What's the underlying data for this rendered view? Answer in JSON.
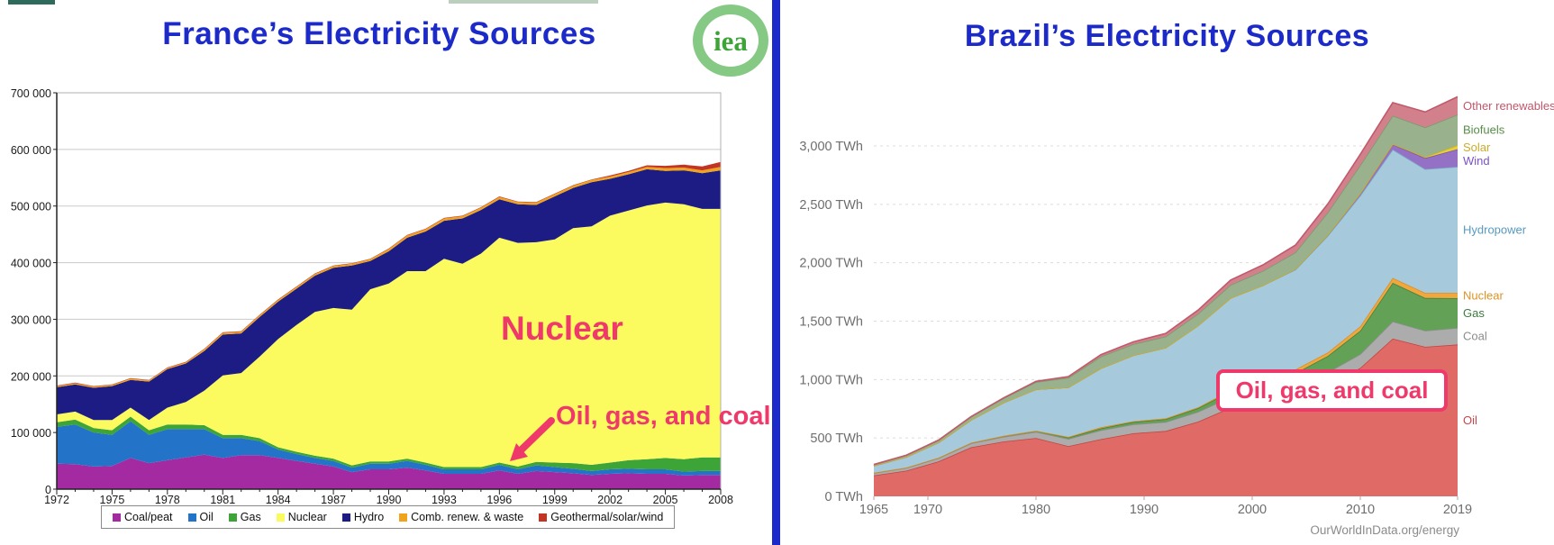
{
  "page": {
    "background": "#ffffff",
    "divider_color": "#1B2AC8"
  },
  "left_panel": {
    "title": "France’s Electricity Sources",
    "title_color": "#1B2AC8",
    "logo": {
      "text": "iea",
      "ring_color": "#85C985",
      "text_color": "#3DA437"
    },
    "annotations": {
      "nuclear": "Nuclear",
      "fossil": "Oil, gas, and coal",
      "color": "#F0396B"
    },
    "chart_data": {
      "type": "area",
      "stacked": true,
      "unit": "GWh",
      "title": "France's Electricity Sources",
      "xlabel": "",
      "ylabel": "",
      "grid": true,
      "legend_position": "bottom",
      "ylim": [
        0,
        700000
      ],
      "x": [
        1972,
        1973,
        1974,
        1975,
        1976,
        1977,
        1978,
        1979,
        1980,
        1981,
        1982,
        1983,
        1984,
        1985,
        1986,
        1987,
        1988,
        1989,
        1990,
        1991,
        1992,
        1993,
        1994,
        1995,
        1996,
        1997,
        1998,
        1999,
        2000,
        2001,
        2002,
        2003,
        2004,
        2005,
        2006,
        2007,
        2008
      ],
      "xticks": [
        1972,
        1975,
        1978,
        1981,
        1984,
        1987,
        1990,
        1993,
        1996,
        1999,
        2002,
        2005,
        2008
      ],
      "yticks": [
        {
          "v": 700000,
          "label": "700 000"
        },
        {
          "v": 600000,
          "label": "600 000"
        },
        {
          "v": 500000,
          "label": "500 000"
        },
        {
          "v": 400000,
          "label": "400 000"
        },
        {
          "v": 300000,
          "label": "300 000"
        },
        {
          "v": 200000,
          "label": "200 000"
        },
        {
          "v": 100000,
          "label": "100 000"
        },
        {
          "v": 0,
          "label": "0"
        }
      ],
      "series": [
        {
          "name": "Coal/peat",
          "color": "#A42AA2",
          "values": [
            45000,
            44000,
            40000,
            41000,
            55000,
            46000,
            51000,
            56000,
            61000,
            55000,
            60000,
            60000,
            55000,
            50000,
            45000,
            40000,
            30000,
            35000,
            35000,
            38000,
            33000,
            27000,
            27000,
            27000,
            33000,
            27000,
            32000,
            30000,
            28000,
            25000,
            27000,
            28000,
            27000,
            27000,
            24000,
            25000,
            25000
          ]
        },
        {
          "name": "Oil",
          "color": "#2374C8",
          "values": [
            65000,
            70000,
            60000,
            55000,
            65000,
            50000,
            55000,
            50000,
            45000,
            35000,
            30000,
            25000,
            15000,
            12000,
            10000,
            10000,
            8000,
            10000,
            10000,
            12000,
            10000,
            8000,
            8000,
            8000,
            10000,
            8000,
            10000,
            9000,
            8000,
            7000,
            8000,
            8000,
            8000,
            8000,
            7000,
            7000,
            7000
          ]
        },
        {
          "name": "Gas",
          "color": "#3DA437",
          "values": [
            8000,
            9000,
            8000,
            8000,
            8000,
            8000,
            8000,
            8000,
            7000,
            6000,
            6000,
            5000,
            4000,
            4000,
            4000,
            4000,
            4000,
            4000,
            4000,
            4000,
            4000,
            4000,
            4000,
            4000,
            4000,
            5000,
            6000,
            8000,
            10000,
            11000,
            12000,
            15000,
            18000,
            20000,
            22000,
            24000,
            24000
          ]
        },
        {
          "name": "Nuclear",
          "color": "#FBFB5F",
          "values": [
            14000,
            14000,
            14000,
            18000,
            16000,
            18000,
            30000,
            40000,
            61000,
            105000,
            109000,
            144000,
            191000,
            224000,
            254000,
            266000,
            275000,
            304000,
            314000,
            331000,
            338000,
            368000,
            359000,
            377000,
            397000,
            395000,
            388000,
            394000,
            415000,
            421000,
            436000,
            441000,
            448000,
            451000,
            450000,
            439000,
            439000
          ]
        },
        {
          "name": "Hydro",
          "color": "#1C1C84",
          "values": [
            48000,
            48000,
            57000,
            60000,
            49000,
            68000,
            68000,
            68000,
            70000,
            72000,
            70000,
            70000,
            66000,
            64000,
            64000,
            71000,
            78000,
            50000,
            57000,
            59000,
            70000,
            67000,
            80000,
            77000,
            68000,
            68000,
            66000,
            76000,
            71000,
            78000,
            65000,
            64000,
            64000,
            56000,
            60000,
            63000,
            68000
          ]
        },
        {
          "name": "Comb. renew. & waste",
          "color": "#F0A41E",
          "values": [
            2000,
            2000,
            2000,
            2000,
            2000,
            2000,
            2000,
            2000,
            3000,
            3000,
            3000,
            3000,
            3000,
            3000,
            3000,
            3000,
            3000,
            3000,
            4000,
            4000,
            4000,
            4000,
            4000,
            4000,
            4000,
            4000,
            4000,
            4000,
            4000,
            4000,
            4000,
            4000,
            4000,
            5000,
            5000,
            5000,
            6000
          ]
        },
        {
          "name": "Geothermal/solar/wind",
          "color": "#C23424",
          "values": [
            1000,
            1000,
            1000,
            1000,
            1000,
            1000,
            1000,
            1000,
            1000,
            1000,
            1000,
            1000,
            1000,
            1000,
            1000,
            1000,
            1000,
            1000,
            1000,
            1000,
            1000,
            1000,
            1000,
            1000,
            1000,
            1000,
            1000,
            1000,
            1000,
            1000,
            2000,
            2000,
            3000,
            4000,
            5000,
            7000,
            9000
          ]
        }
      ]
    }
  },
  "right_panel": {
    "title": "Brazil’s Electricity Sources",
    "title_color": "#1B2AC8",
    "annotation": {
      "text": "Oil, gas, and coal",
      "color": "#F0396B"
    },
    "attribution": "OurWorldInData.org/energy",
    "chart_data": {
      "type": "area",
      "stacked": true,
      "unit": "TWh",
      "title": "Brazil's Electricity Sources",
      "xlabel": "",
      "ylabel": "",
      "grid": true,
      "legend_position": "right",
      "ylim": [
        0,
        3000
      ],
      "x": [
        1965,
        1968,
        1971,
        1974,
        1977,
        1980,
        1983,
        1986,
        1989,
        1992,
        1995,
        1998,
        2001,
        2004,
        2007,
        2010,
        2013,
        2016,
        2019
      ],
      "xticks": [
        1965,
        1970,
        1980,
        1990,
        2000,
        2010,
        2019
      ],
      "yticks": [
        {
          "v": 3000,
          "label": "3,000 TWh"
        },
        {
          "v": 2500,
          "label": "2,500 TWh"
        },
        {
          "v": 2000,
          "label": "2,000 TWh"
        },
        {
          "v": 1500,
          "label": "1,500 TWh"
        },
        {
          "v": 1000,
          "label": "1,000 TWh"
        },
        {
          "v": 500,
          "label": "500 TWh"
        },
        {
          "v": 0,
          "label": "0 TWh"
        }
      ],
      "series": [
        {
          "name": "Oil",
          "fill": "#E06A66",
          "stroke": "#C24542",
          "label_color": "#C4474B",
          "values": [
            180,
            220,
            300,
            420,
            470,
            500,
            430,
            490,
            540,
            560,
            640,
            760,
            820,
            820,
            950,
            1100,
            1350,
            1280,
            1300
          ]
        },
        {
          "name": "Coal",
          "fill": "#ACACAC",
          "stroke": "#8F8F8F",
          "label_color": "#8C8C8C",
          "values": [
            20,
            24,
            28,
            34,
            40,
            52,
            62,
            76,
            76,
            76,
            84,
            90,
            95,
            105,
            112,
            118,
            148,
            138,
            142
          ]
        },
        {
          "name": "Gas",
          "fill": "#62A156",
          "stroke": "#41803B",
          "label_color": "#3D7C3D",
          "values": [
            2,
            3,
            4,
            6,
            8,
            10,
            12,
            16,
            22,
            26,
            32,
            48,
            95,
            130,
            140,
            200,
            330,
            280,
            255
          ]
        },
        {
          "name": "Nuclear",
          "fill": "#F0A83E",
          "stroke": "#DB8E22",
          "label_color": "#DE9226",
          "values": [
            0,
            0,
            0,
            0,
            0,
            0,
            5,
            10,
            5,
            6,
            7,
            10,
            38,
            32,
            30,
            38,
            42,
            44,
            45
          ]
        },
        {
          "name": "Hydropower",
          "fill": "#A6C9DC",
          "stroke": "#76A9C5",
          "label_color": "#5799C0",
          "values": [
            60,
            90,
            130,
            195,
            285,
            355,
            425,
            505,
            565,
            605,
            700,
            790,
            760,
            855,
            1000,
            1120,
            1100,
            1060,
            1080
          ]
        },
        {
          "name": "Wind",
          "fill": "#9571C6",
          "stroke": "#7C54AF",
          "label_color": "#7B52C7",
          "values": [
            0,
            0,
            0,
            0,
            0,
            0,
            0,
            0,
            0,
            0,
            0,
            0,
            0,
            5,
            10,
            20,
            45,
            95,
            150
          ]
        },
        {
          "name": "Solar",
          "fill": "#E5CE3D",
          "stroke": "#CBB120",
          "label_color": "#CCAC2B",
          "values": [
            0,
            0,
            0,
            0,
            0,
            0,
            0,
            0,
            0,
            0,
            0,
            0,
            0,
            0,
            0,
            0,
            2,
            10,
            35
          ]
        },
        {
          "name": "Biofuels",
          "fill": "#9AB18D",
          "stroke": "#7B9A6C",
          "label_color": "#578D48",
          "values": [
            10,
            15,
            20,
            26,
            36,
            62,
            82,
            100,
            95,
            96,
            100,
            112,
            122,
            142,
            190,
            240,
            242,
            252,
            262
          ]
        },
        {
          "name": "Other renewables",
          "fill": "#D2818C",
          "stroke": "#C05A6B",
          "label_color": "#C4556A",
          "values": [
            0,
            0,
            0,
            2,
            4,
            6,
            10,
            16,
            20,
            26,
            32,
            42,
            52,
            62,
            72,
            92,
            112,
            132,
            152
          ]
        }
      ]
    }
  }
}
